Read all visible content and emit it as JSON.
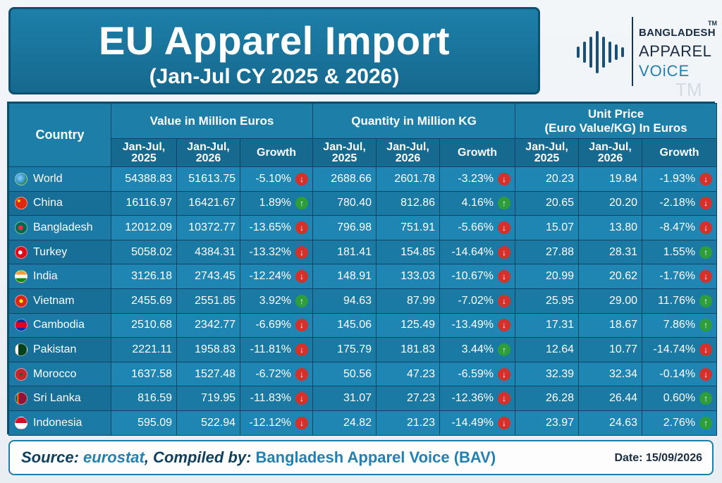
{
  "header": {
    "title": "EU Apparel Import",
    "subtitle": "(Jan-Jul CY 2025 & 2026)"
  },
  "logo": {
    "line1": "BANGLADESH",
    "line2": "APPAREL",
    "line3": "VOiCE",
    "tm": "TM",
    "watermark_tm": "TM"
  },
  "table": {
    "country_header": "Country",
    "groups": [
      "Value in Million Euros",
      "Quantity in Million KG",
      "Unit Price (Euro Value/KG) In Euros"
    ],
    "groups_display": {
      "value": "Value in Million Euros",
      "quantity": "Quantity in Million KG",
      "price_line1": "Unit Price",
      "price_line2": "(Euro Value/KG) In Euros"
    },
    "sub_headers": {
      "y2025_line1": "Jan-Jul,",
      "y2025_line2": "2025",
      "y2026_line1": "Jan-Jul,",
      "y2026_line2": "2026",
      "growth": "Growth"
    },
    "colors": {
      "up": "#2e9e3a",
      "down": "#d4312b",
      "header": "#1d7fa8"
    }
  },
  "chart_data": {
    "type": "table",
    "title": "EU Apparel Import",
    "subtitle": "(Jan-Jul CY 2025 & 2026)",
    "columns": [
      "Country",
      "Value Jan-Jul 2025",
      "Value Jan-Jul 2026",
      "Value Growth",
      "Quantity Jan-Jul 2025",
      "Quantity Jan-Jul 2026",
      "Quantity Growth",
      "Unit Price Jan-Jul 2025",
      "Unit Price Jan-Jul 2026",
      "Unit Price Growth"
    ],
    "rows": [
      {
        "country": "World",
        "flag": "globe",
        "v25": "54388.83",
        "v26": "51613.75",
        "vg": "-5.10%",
        "vd": "down",
        "q25": "2688.66",
        "q26": "2601.78",
        "qg": "-3.23%",
        "qd": "down",
        "p25": "20.23",
        "p26": "19.84",
        "pg": "-1.93%",
        "pd": "down"
      },
      {
        "country": "China",
        "flag": "cn",
        "v25": "16116.97",
        "v26": "16421.67",
        "vg": "1.89%",
        "vd": "up",
        "q25": "780.40",
        "q26": "812.86",
        "qg": "4.16%",
        "qd": "up",
        "p25": "20.65",
        "p26": "20.20",
        "pg": "-2.18%",
        "pd": "down"
      },
      {
        "country": "Bangladesh",
        "flag": "bd",
        "v25": "12012.09",
        "v26": "10372.77",
        "vg": "-13.65%",
        "vd": "down",
        "q25": "796.98",
        "q26": "751.91",
        "qg": "-5.66%",
        "qd": "down",
        "p25": "15.07",
        "p26": "13.80",
        "pg": "-8.47%",
        "pd": "down"
      },
      {
        "country": "Turkey",
        "flag": "tr",
        "v25": "5058.02",
        "v26": "4384.31",
        "vg": "-13.32%",
        "vd": "down",
        "q25": "181.41",
        "q26": "154.85",
        "qg": "-14.64%",
        "qd": "down",
        "p25": "27.88",
        "p26": "28.31",
        "pg": "1.55%",
        "pd": "up"
      },
      {
        "country": "India",
        "flag": "in",
        "v25": "3126.18",
        "v26": "2743.45",
        "vg": "-12.24%",
        "vd": "down",
        "q25": "148.91",
        "q26": "133.03",
        "qg": "-10.67%",
        "qd": "down",
        "p25": "20.99",
        "p26": "20.62",
        "pg": "-1.76%",
        "pd": "down"
      },
      {
        "country": "Vietnam",
        "flag": "vn",
        "v25": "2455.69",
        "v26": "2551.85",
        "vg": "3.92%",
        "vd": "up",
        "q25": "94.63",
        "q26": "87.99",
        "qg": "-7.02%",
        "qd": "down",
        "p25": "25.95",
        "p26": "29.00",
        "pg": "11.76%",
        "pd": "up"
      },
      {
        "country": "Cambodia",
        "flag": "kh",
        "v25": "2510.68",
        "v26": "2342.77",
        "vg": "-6.69%",
        "vd": "down",
        "q25": "145.06",
        "q26": "125.49",
        "qg": "-13.49%",
        "qd": "down",
        "p25": "17.31",
        "p26": "18.67",
        "pg": "7.86%",
        "pd": "up"
      },
      {
        "country": "Pakistan",
        "flag": "pk",
        "v25": "2221.11",
        "v26": "1958.83",
        "vg": "-11.81%",
        "vd": "down",
        "q25": "175.79",
        "q26": "181.83",
        "qg": "3.44%",
        "qd": "up",
        "p25": "12.64",
        "p26": "10.77",
        "pg": "-14.74%",
        "pd": "down"
      },
      {
        "country": "Morocco",
        "flag": "ma",
        "v25": "1637.58",
        "v26": "1527.48",
        "vg": "-6.72%",
        "vd": "down",
        "q25": "50.56",
        "q26": "47.23",
        "qg": "-6.59%",
        "qd": "down",
        "p25": "32.39",
        "p26": "32.34",
        "pg": "-0.14%",
        "pd": "down"
      },
      {
        "country": "Sri Lanka",
        "flag": "lk",
        "v25": "816.59",
        "v26": "719.95",
        "vg": "-11.83%",
        "vd": "down",
        "q25": "31.07",
        "q26": "27.23",
        "qg": "-12.36%",
        "qd": "down",
        "p25": "26.28",
        "p26": "26.44",
        "pg": "0.60%",
        "pd": "up"
      },
      {
        "country": "Indonesia",
        "flag": "id",
        "v25": "595.09",
        "v26": "522.94",
        "vg": "-12.12%",
        "vd": "down",
        "q25": "24.82",
        "q26": "21.23",
        "qg": "-14.49%",
        "qd": "down",
        "p25": "23.97",
        "p26": "24.63",
        "pg": "2.76%",
        "pd": "up"
      }
    ]
  },
  "flags": {
    "globe": "radial-gradient(circle at 40% 40%, #8fd0f0 0%, #3a9ad8 45%, #2c8a3a 70%, #1f6fb0 100%)",
    "cn": "radial-gradient(circle at 30% 30%, #ffde00 0 12%, #de2910 13%)",
    "bd": "radial-gradient(circle at 45% 50%, #f42a41 0 28%, #006a4e 30%)",
    "tr": "radial-gradient(circle at 42% 50%, #ffffff 0 22%, #e30a17 24%)",
    "in": "linear-gradient(180deg, #ff9933 0 33%, #ffffff 33% 66%, #138808 66%)",
    "vn": "radial-gradient(circle at 50% 50%, #ffff00 0 22%, #da251d 24%)",
    "kh": "linear-gradient(180deg, #032ea1 0 25%, #e00025 25% 75%, #032ea1 75%)",
    "pk": "linear-gradient(90deg, #ffffff 0 25%, #01411c 25%)",
    "ma": "radial-gradient(circle at 50% 50%, #006233 0 14%, #c1272d 16%)",
    "lk": "linear-gradient(90deg, #005f56 0 14%, #ff5b00 14% 28%, #8d153a 28%)",
    "id": "linear-gradient(180deg, #ce1126 0 50%, #ffffff 50%)"
  },
  "footer": {
    "source_label": "Source: ",
    "source_value": "eurostat",
    "compiled_label": ", Compiled by: ",
    "compiled_value": "Bangladesh Apparel Voice (BAV)",
    "date": "Date: 15/09/2026"
  }
}
